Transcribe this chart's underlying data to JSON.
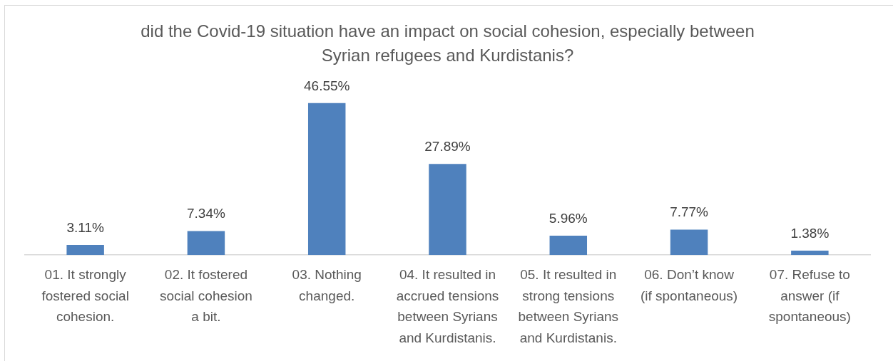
{
  "chart_data": {
    "type": "bar",
    "title": "did the Covid-19 situation have an impact on social cohesion, especially between Syrian refugees and Kurdistanis?",
    "categories": [
      "01. It strongly fostered social cohesion.",
      "02. It fostered social cohesion a bit.",
      "03. Nothing changed.",
      "04. It resulted in accrued tensions between Syrians and Kurdistanis.",
      "05. It resulted in strong tensions between Syrians and Kurdistanis.",
      "06. Don’t know (if spontaneous)",
      "07. Refuse to answer (if spontaneous)"
    ],
    "values": [
      3.11,
      7.34,
      46.55,
      27.89,
      5.96,
      7.77,
      1.38
    ],
    "value_labels": [
      "3.11%",
      "7.34%",
      "46.55%",
      "27.89%",
      "5.96%",
      "7.77%",
      "1.38%"
    ],
    "color": "#4f81bd"
  }
}
